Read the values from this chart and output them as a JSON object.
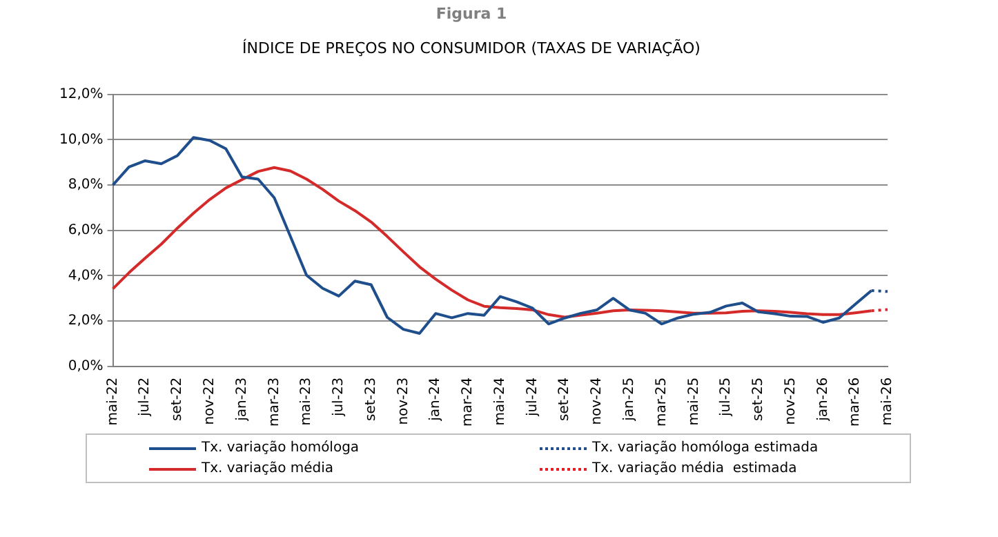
{
  "chart_data": {
    "type": "line",
    "title": "Figura 1",
    "subtitle": "ÍNDICE DE PREÇOS NO CONSUMIDOR (TAXAS DE VARIAÇÃO)",
    "categories": [
      "mai-22",
      null,
      "jul-22",
      null,
      "set-22",
      null,
      "nov-22",
      null,
      "jan-23",
      null,
      "mar-23",
      null,
      "mai-23",
      null,
      "jul-23",
      null,
      "set-23",
      null,
      "nov-23",
      null,
      "jan-24",
      null,
      "mar-24",
      null,
      "mai-24",
      null,
      "jul-24",
      null,
      "set-24",
      null,
      "nov-24",
      null,
      "jan-25",
      null,
      "mar-25",
      null,
      "mai-25",
      null,
      "jul-25",
      null,
      "set-25",
      null,
      "nov-25",
      null,
      "jan-26",
      null,
      "mar-26",
      null,
      "mai-26"
    ],
    "series": [
      {
        "name": "Tx. variação homóloga",
        "color": "#1f4e8c",
        "line_style": "solid",
        "values": [
          8.0,
          8.8,
          9.07,
          8.94,
          9.3,
          10.1,
          9.97,
          9.6,
          8.36,
          8.26,
          7.44,
          5.73,
          4.02,
          3.44,
          3.1,
          3.76,
          3.6,
          2.16,
          1.63,
          1.45,
          2.33,
          2.14,
          2.33,
          2.25,
          3.08,
          2.85,
          2.57,
          1.87,
          2.13,
          2.34,
          2.49,
          3.0,
          2.49,
          2.34,
          1.87,
          2.13,
          2.3,
          2.38,
          2.66,
          2.79,
          2.4,
          2.32,
          2.21,
          2.2,
          1.94,
          2.13,
          2.74,
          3.34,
          null
        ]
      },
      {
        "name": "Tx. variação homóloga estimada",
        "color": "#1f4e8c",
        "line_style": "dotted",
        "values": [
          null,
          null,
          null,
          null,
          null,
          null,
          null,
          null,
          null,
          null,
          null,
          null,
          null,
          null,
          null,
          null,
          null,
          null,
          null,
          null,
          null,
          null,
          null,
          null,
          null,
          null,
          null,
          null,
          null,
          null,
          null,
          null,
          null,
          null,
          null,
          null,
          null,
          null,
          null,
          null,
          null,
          null,
          null,
          null,
          null,
          null,
          null,
          3.34,
          3.3
        ]
      },
      {
        "name": "Tx. variação média",
        "color": "#d42a2a",
        "line_style": "solid",
        "values": [
          3.42,
          4.13,
          4.77,
          5.39,
          6.1,
          6.76,
          7.36,
          7.87,
          8.24,
          8.6,
          8.77,
          8.62,
          8.26,
          7.81,
          7.29,
          6.87,
          6.37,
          5.73,
          5.05,
          4.39,
          3.85,
          3.36,
          2.93,
          2.65,
          2.59,
          2.55,
          2.49,
          2.28,
          2.17,
          2.26,
          2.34,
          2.45,
          2.49,
          2.47,
          2.45,
          2.4,
          2.34,
          2.34,
          2.36,
          2.43,
          2.45,
          2.43,
          2.38,
          2.32,
          2.28,
          2.28,
          2.36,
          2.45,
          null
        ]
      },
      {
        "name": "Tx. variação média  estimada",
        "color": "#e0202a",
        "line_style": "dotted",
        "values": [
          null,
          null,
          null,
          null,
          null,
          null,
          null,
          null,
          null,
          null,
          null,
          null,
          null,
          null,
          null,
          null,
          null,
          null,
          null,
          null,
          null,
          null,
          null,
          null,
          null,
          null,
          null,
          null,
          null,
          null,
          null,
          null,
          null,
          null,
          null,
          null,
          null,
          null,
          null,
          null,
          null,
          null,
          null,
          null,
          null,
          null,
          null,
          2.45,
          2.5
        ]
      }
    ],
    "ylim": [
      0,
      12
    ],
    "yticks": [
      {
        "value": 0,
        "label": "0,0%"
      },
      {
        "value": 2,
        "label": "2,0%"
      },
      {
        "value": 4,
        "label": "4,0%"
      },
      {
        "value": 6,
        "label": "6,0%"
      },
      {
        "value": 8,
        "label": "8,0%"
      },
      {
        "value": 10,
        "label": "10,0%"
      },
      {
        "value": 12,
        "label": "12,0%"
      }
    ],
    "grid": "y",
    "legend": "bottom",
    "marker": "none"
  }
}
